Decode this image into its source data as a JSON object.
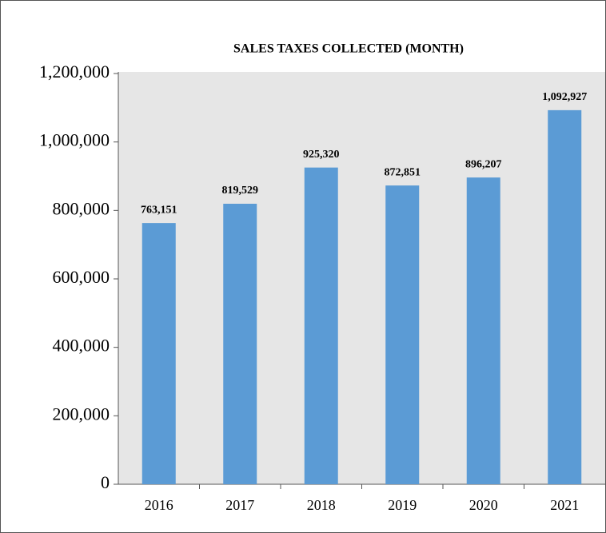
{
  "chart_data": {
    "type": "bar",
    "title": "SALES TAXES COLLECTED (MONTH)",
    "categories": [
      "2016",
      "2017",
      "2018",
      "2019",
      "2020",
      "2021"
    ],
    "values": [
      763151,
      819529,
      925320,
      872851,
      896207,
      1092927
    ],
    "value_labels": [
      "763,151",
      "819,529",
      "925,320",
      "872,851",
      "896,207",
      "1,092,927"
    ],
    "color": "#5b9bd5",
    "ylim": [
      0,
      1200000
    ],
    "yticks": [
      0,
      {
        "value": 200000,
        "label": "200,000"
      },
      {
        "value": 400000,
        "label": "400,000"
      },
      {
        "value": 600000,
        "label": "600,000"
      },
      {
        "value": 800000,
        "label": "800,000"
      },
      {
        "value": 1000000,
        "label": "1,000,000"
      },
      {
        "value": 1200000,
        "label": "1,200,000"
      }
    ],
    "grid": false
  }
}
